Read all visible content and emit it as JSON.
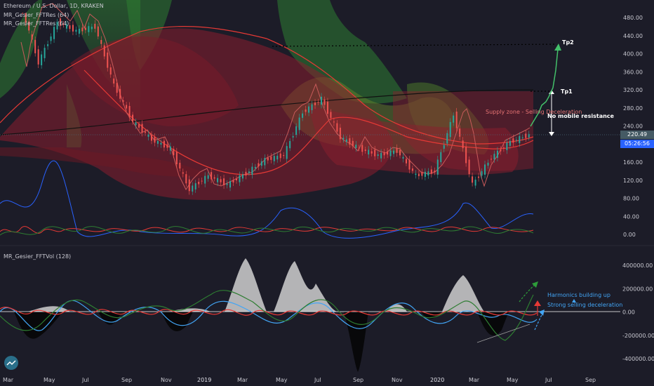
{
  "header": {
    "title": "Ethereum / U.S. Dollar, 1D, KRAKEN",
    "study1": "MR_Gesier_FFTRes (64)",
    "study2": "MR_Gesier_FFTRes (64)",
    "lower_title": "MR_Gesier_FFTVol (128)"
  },
  "tags": {
    "last_price": "220.49",
    "countdown": "05:26:56"
  },
  "annotations": {
    "tp2": "Tp2",
    "tp1": "Tp1",
    "supply_zone": "Supply zone - Selling Deceleration",
    "no_resistance": "No mobile resistance",
    "harmonics": "Harmonics building up",
    "strong_selling": "Strong selling deceleration"
  },
  "colors": {
    "background": "#1c1c28",
    "up": "#26a69a",
    "down": "#ef5350",
    "green_band": "#2e7d32",
    "red_band": "#8b1e2e",
    "blue_osc": "#2962ff",
    "last_price_tag": "#455a64",
    "countdown_tag": "#2962ff"
  },
  "chart_data": [
    {
      "type": "line",
      "title": "Ethereum / U.S. Dollar, 1D, KRAKEN",
      "xlabel": "",
      "ylabel": "",
      "x_ticks": [
        "Mar",
        "May",
        "Jul",
        "Sep",
        "Nov",
        "2019",
        "Mar",
        "May",
        "Jul",
        "Sep",
        "Nov",
        "2020",
        "Mar",
        "May",
        "Jul",
        "Sep"
      ],
      "y_ticks": [
        "480.00",
        "440.00",
        "400.00",
        "360.00",
        "320.00",
        "280.00",
        "240.00",
        "200.00",
        "160.00",
        "120.00",
        "80.00",
        "40.00",
        "0.00"
      ],
      "ylim": [
        -10,
        490
      ],
      "grid": false,
      "series": [
        {
          "values": [
            {
              "x": "2018-03",
              "y": 520
            },
            {
              "x": "2018-04",
              "y": 380
            },
            {
              "x": "2018-05",
              "y": 470
            },
            {
              "x": "2018-06",
              "y": 450
            },
            {
              "x": "2018-07",
              "y": 460
            },
            {
              "x": "2018-08",
              "y": 330
            },
            {
              "x": "2018-09",
              "y": 250
            },
            {
              "x": "2018-10",
              "y": 210
            },
            {
              "x": "2018-11",
              "y": 190
            },
            {
              "x": "2018-12",
              "y": 100
            },
            {
              "x": "2019-01",
              "y": 130
            },
            {
              "x": "2019-02",
              "y": 110
            },
            {
              "x": "2019-03",
              "y": 135
            },
            {
              "x": "2019-04",
              "y": 165
            },
            {
              "x": "2019-05",
              "y": 175
            },
            {
              "x": "2019-06",
              "y": 270
            },
            {
              "x": "2019-07",
              "y": 300
            },
            {
              "x": "2019-08",
              "y": 215
            },
            {
              "x": "2019-09",
              "y": 190
            },
            {
              "x": "2019-10",
              "y": 175
            },
            {
              "x": "2019-11",
              "y": 185
            },
            {
              "x": "2019-12",
              "y": 130
            },
            {
              "x": "2020-01",
              "y": 140
            },
            {
              "x": "2020-02",
              "y": 265
            },
            {
              "x": "2020-03",
              "y": 110
            },
            {
              "x": "2020-04",
              "y": 170
            },
            {
              "x": "2020-05",
              "y": 205
            },
            {
              "x": "2020-06",
              "y": 220.49
            }
          ]
        }
      ],
      "projections": [
        {
          "label": "Tp1",
          "y": 312
        },
        {
          "label": "Tp2",
          "y": 420
        }
      ]
    },
    {
      "type": "area",
      "title": "MR_Gesier_FFTVol (128)",
      "y_ticks": [
        "400000.00",
        "200000.00",
        "0.00",
        "-200000.00",
        "-400000.00"
      ],
      "ylim": [
        -520000,
        480000
      ],
      "grid": false,
      "series": [
        {
          "values": [
            {
              "x": "2018-03",
              "y": 0
            },
            {
              "x": "2018-05",
              "y": 80000
            },
            {
              "x": "2018-09",
              "y": 60000
            },
            {
              "x": "2018-12",
              "y": 100000
            },
            {
              "x": "2019-03",
              "y": 420000
            },
            {
              "x": "2019-05",
              "y": 350000
            },
            {
              "x": "2019-07",
              "y": 240000
            },
            {
              "x": "2019-10",
              "y": 60000
            },
            {
              "x": "2019-12",
              "y": 90000
            },
            {
              "x": "2020-02",
              "y": 300000
            },
            {
              "x": "2020-04",
              "y": 40000
            },
            {
              "x": "2020-06",
              "y": 0
            }
          ]
        },
        {
          "values": [
            {
              "x": "2018-03",
              "y": 0
            },
            {
              "x": "2018-05",
              "y": -250000
            },
            {
              "x": "2018-09",
              "y": -80000
            },
            {
              "x": "2018-12",
              "y": -150000
            },
            {
              "x": "2019-03",
              "y": -50000
            },
            {
              "x": "2019-08",
              "y": -100000
            },
            {
              "x": "2019-09",
              "y": -520000
            },
            {
              "x": "2019-12",
              "y": -150000
            },
            {
              "x": "2020-03",
              "y": -80000
            },
            {
              "x": "2020-06",
              "y": 0
            }
          ]
        }
      ]
    }
  ]
}
